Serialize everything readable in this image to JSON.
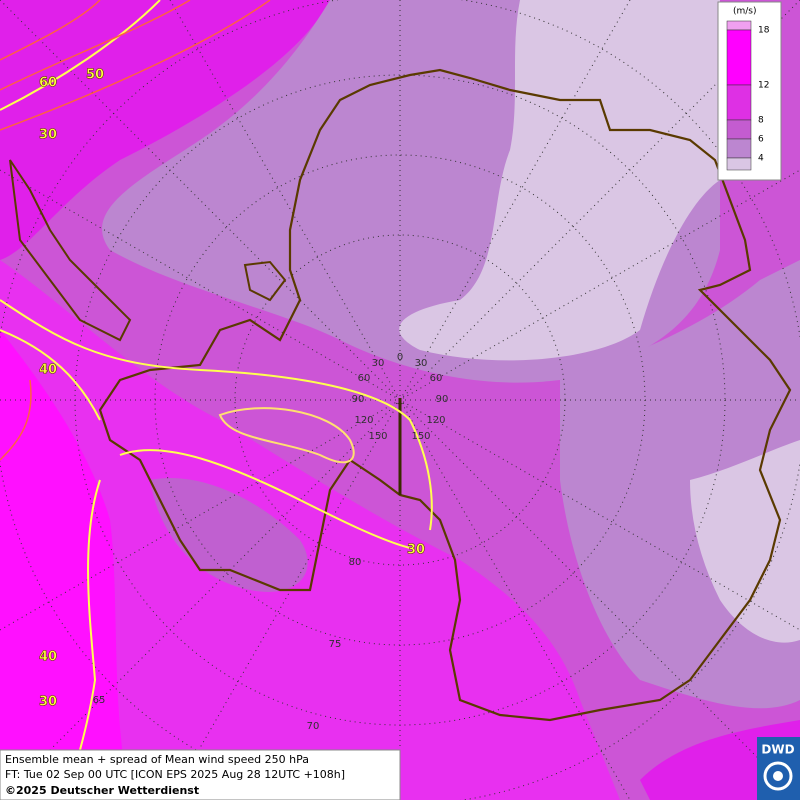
{
  "legend": {
    "unit": "(m/s)",
    "ticks": [
      18,
      12,
      8,
      6,
      4
    ]
  },
  "contour_labels": [
    60,
    50,
    30,
    40,
    40,
    30,
    30
  ],
  "grid_labels": [
    30,
    0,
    30,
    60,
    60,
    90,
    90,
    120,
    120,
    150,
    150,
    80,
    75,
    70,
    65
  ],
  "footer": {
    "line1": "Ensemble mean + spread of Mean wind speed 250 hPa",
    "line2": "FT: Tue 02 Sep 00 UTC [ICON EPS 2025 Aug 28 12UTC +108h]",
    "copyright": "©2025 Deutscher Wetterdienst"
  },
  "logo": "DWD"
}
